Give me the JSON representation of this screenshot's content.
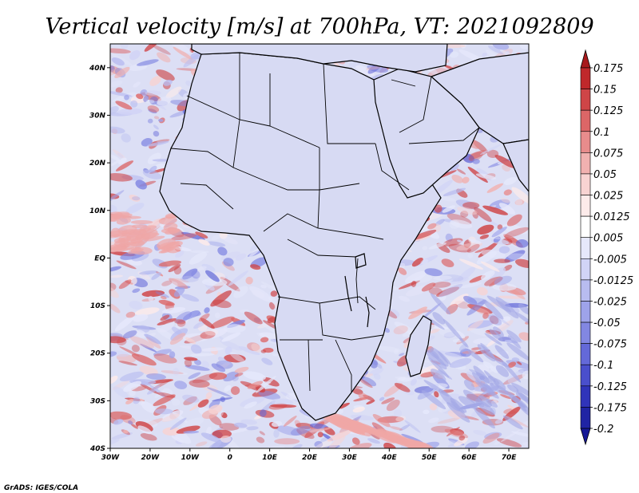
{
  "title": "Vertical velocity [m/s] at 700hPa, VT: 2021092809",
  "credit": "GrADS: IGES/COLA",
  "lon_ticks": [
    "30W",
    "20W",
    "10W",
    "0",
    "10E",
    "20E",
    "30E",
    "40E",
    "50E",
    "60E",
    "70E"
  ],
  "lat_ticks": [
    "40N",
    "30N",
    "20N",
    "10N",
    "EQ",
    "10S",
    "20S",
    "30S",
    "40S"
  ],
  "map": {
    "region": "Africa",
    "lon_range": [
      -30,
      75
    ],
    "lat_range": [
      -40,
      45
    ],
    "field": "vertical velocity",
    "level": "700hPa",
    "units": "m/s"
  },
  "colorbar": {
    "labels": [
      "0.175",
      "0.15",
      "0.125",
      "0.1",
      "0.075",
      "0.05",
      "0.025",
      "0.0125",
      "0.005",
      "-0.005",
      "-0.0125",
      "-0.025",
      "-0.05",
      "-0.075",
      "-0.1",
      "-0.125",
      "-0.175",
      "-0.2"
    ],
    "colors": [
      "#a8191c",
      "#c0282b",
      "#cf4547",
      "#dc6667",
      "#e88c8c",
      "#f1b1b0",
      "#f8d3d2",
      "#fdebea",
      "#ffffff",
      "#e6e8fb",
      "#d1d4f6",
      "#b8bcf0",
      "#9ea3ea",
      "#8287e2",
      "#6469d8",
      "#4a4fcc",
      "#3034ba",
      "#2024a4",
      "#161896"
    ]
  },
  "palette": {
    "ocean_base": "#dcdff5",
    "land_base": "#d7daf3",
    "red_patch": "#f0a7a6",
    "blue_patch": "#a3a8e6",
    "boundary": "#000000"
  }
}
